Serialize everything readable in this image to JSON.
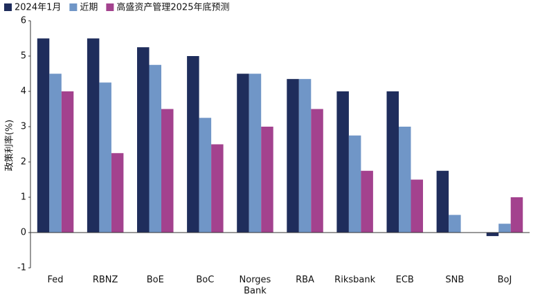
{
  "chart_data": {
    "type": "bar",
    "y_label": "政策利率(%)",
    "categories": [
      "Fed",
      "RBNZ",
      "BoE",
      "BoC",
      "Norges Bank",
      "RBA",
      "Riksbank",
      "ECB",
      "SNB",
      "BoJ"
    ],
    "series": [
      {
        "name": "2024年1月",
        "color": "#1f2d5c",
        "values": [
          5.5,
          5.5,
          5.25,
          5.0,
          4.5,
          4.35,
          4.0,
          4.0,
          1.75,
          -0.1
        ]
      },
      {
        "name": "近期",
        "color": "#7096c7",
        "values": [
          4.5,
          4.25,
          4.75,
          3.25,
          4.5,
          4.35,
          2.75,
          3.0,
          0.5,
          0.25
        ]
      },
      {
        "name": "高盛资产管理2025年底预测",
        "color": "#a3428e",
        "values": [
          4.0,
          2.25,
          3.5,
          2.5,
          3.0,
          3.5,
          1.75,
          1.5,
          null,
          1.0
        ]
      }
    ],
    "ylim": [
      -1,
      6
    ],
    "yticks": [
      -1,
      0,
      1,
      2,
      3,
      4,
      5,
      6
    ],
    "grid": false,
    "legend": "top-left"
  }
}
